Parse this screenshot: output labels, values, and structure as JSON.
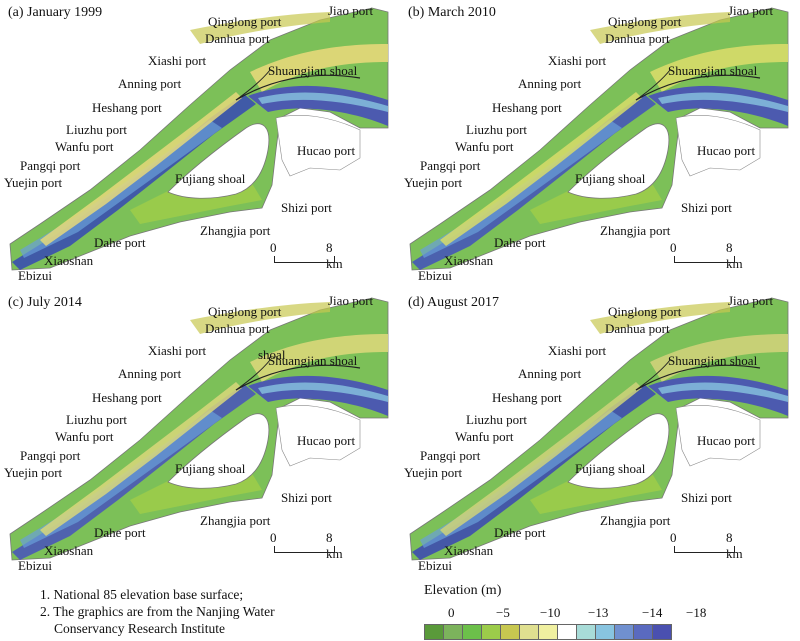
{
  "panels": [
    {
      "title": "(a) January 1999",
      "labels": {
        "jiao": "Jiao port",
        "qinglong": "Qinglong port",
        "danhua": "Danhua port",
        "xiashi": "Xiashi port",
        "anning": "Anning port",
        "shuangjian": "Shuangjian shoal",
        "heshang": "Heshang port",
        "liuzhu": "Liuzhu port",
        "wanfu": "Wanfu port",
        "hucao": "Hucao port",
        "pangqi": "Pangqi port",
        "yuejin": "Yuejin port",
        "fujiang": "Fujiang shoal",
        "shizi": "Shizi port",
        "zhangjia": "Zhangjia port",
        "dahe": "Dahe port",
        "xiaoshan": "Xiaoshan",
        "ebizui": "Ebizui"
      },
      "extra_label": "",
      "scale": {
        "zero": "0",
        "end": "8 km"
      }
    },
    {
      "title": "(b) March 2010",
      "labels": {
        "jiao": "Jiao port",
        "qinglong": "Qinglong port",
        "danhua": "Danhua port",
        "xiashi": "Xiashi port",
        "anning": "Anning port",
        "shuangjian": "Shuangjian shoal",
        "heshang": "Heshang port",
        "liuzhu": "Liuzhu port",
        "wanfu": "Wanfu port",
        "hucao": "Hucao port",
        "pangqi": "Pangqi port",
        "yuejin": "Yuejin port",
        "fujiang": "Fujiang shoal",
        "shizi": "Shizi port",
        "zhangjia": "Zhangjia port",
        "dahe": "Dahe port",
        "xiaoshan": "Xiaoshan",
        "ebizui": "Ebizui"
      },
      "extra_label": "",
      "scale": {
        "zero": "0",
        "end": "8 km"
      }
    },
    {
      "title": "(c) July 2014",
      "labels": {
        "jiao": "Jiao port",
        "qinglong": "Qinglong port",
        "danhua": "Danhua port",
        "xiashi": "Xiashi port",
        "anning": "Anning port",
        "shuangjian": "Shuangjian shoal",
        "heshang": "Heshang port",
        "liuzhu": "Liuzhu port",
        "wanfu": "Wanfu port",
        "hucao": "Hucao port",
        "pangqi": "Pangqi port",
        "yuejin": "Yuejin port",
        "fujiang": "Fujiang shoal",
        "shizi": "Shizi port",
        "zhangjia": "Zhangjia port",
        "dahe": "Dahe port",
        "xiaoshan": "Xiaoshan",
        "ebizui": "Ebizui"
      },
      "extra_label": "shoal",
      "scale": {
        "zero": "0",
        "end": "8 km"
      }
    },
    {
      "title": "(d) August 2017",
      "labels": {
        "jiao": "Jiao port",
        "qinglong": "Qinglong port",
        "danhua": "Danhua port",
        "xiashi": "Xiashi port",
        "anning": "Anning port",
        "shuangjian": "Shuangjian shoal",
        "heshang": "Heshang port",
        "liuzhu": "Liuzhu port",
        "wanfu": "Wanfu port",
        "hucao": "Hucao port",
        "pangqi": "Pangqi port",
        "yuejin": "Yuejin port",
        "fujiang": "Fujiang shoal",
        "shizi": "Shizi port",
        "zhangjia": "Zhangjia port",
        "dahe": "Dahe port",
        "xiaoshan": "Xiaoshan",
        "ebizui": "Ebizui"
      },
      "extra_label": "",
      "scale": {
        "zero": "0",
        "end": "8 km"
      }
    }
  ],
  "notes": {
    "line1": "1. National 85 elevation base surface;",
    "line2": "2. The graphics are from the Nanjing Water",
    "line3": "Conservancy Research Institute"
  },
  "legend": {
    "title": "Elevation (m)",
    "ticks": [
      "0",
      "−5",
      "−10",
      "−13",
      "−14",
      "−18"
    ],
    "colors": [
      "#5a9a3a",
      "#7cb35c",
      "#6cc04a",
      "#9ccc4a",
      "#c8c850",
      "#e0e090",
      "#f0f0a0",
      "#ffffff",
      "#a8dcd8",
      "#88c4e0",
      "#7090d0",
      "#5a6ac0",
      "#4a50b0"
    ]
  }
}
